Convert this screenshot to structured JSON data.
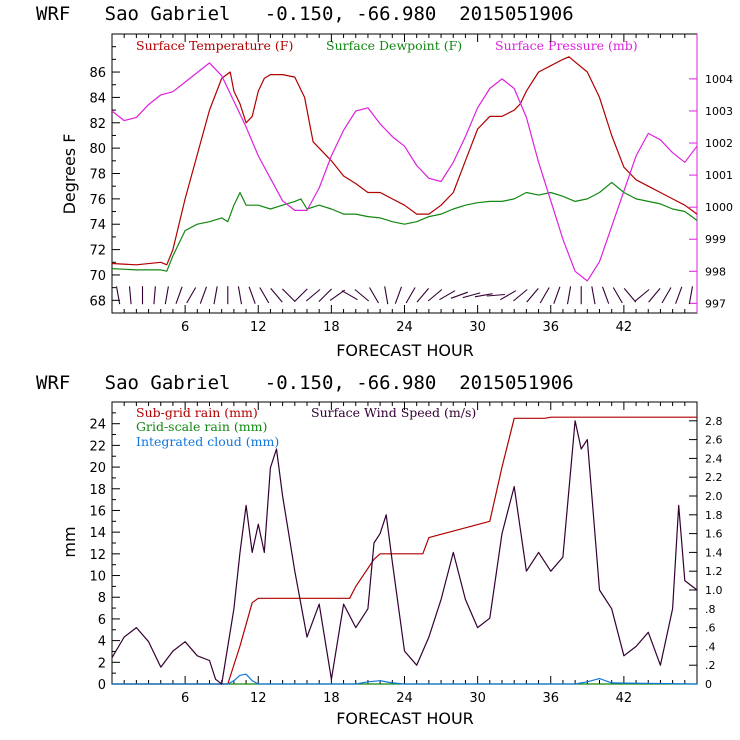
{
  "chart_data": [
    {
      "type": "line",
      "title": "WRF   Sao Gabriel   -0.150, -66.980  2015051906",
      "xlabel": "FORECAST HOUR",
      "ylabel": "Degrees F",
      "xlim": [
        0,
        48
      ],
      "ylim": [
        67,
        89
      ],
      "y2lim": [
        996.7,
        1005.4
      ],
      "xticks": [
        "6",
        "12",
        "18",
        "24",
        "30",
        "36",
        "42"
      ],
      "xtick_values": [
        6,
        12,
        18,
        24,
        30,
        36,
        42
      ],
      "yticks": [
        "68",
        "70",
        "72",
        "74",
        "76",
        "78",
        "80",
        "82",
        "84",
        "86"
      ],
      "ytick_values": [
        68,
        70,
        72,
        74,
        76,
        78,
        80,
        82,
        84,
        86
      ],
      "y2ticks": [
        "997",
        "998",
        "999",
        "1000",
        "1001",
        "1002",
        "1003",
        "1004"
      ],
      "y2tick_values": [
        997,
        998,
        999,
        1000,
        1001,
        1002,
        1003,
        1004
      ],
      "legend": [
        "Surface Temperature (F)",
        "Surface Dewpoint (F)",
        "Surface Pressure (mb)"
      ],
      "colors": {
        "temperature": "#b00000",
        "dewpoint": "#118811",
        "pressure": "#dd22dd",
        "wind_barbs": "#330033"
      },
      "series": [
        {
          "name": "Surface Temperature (F)",
          "axis": "left",
          "x": [
            0,
            2,
            4,
            4.5,
            5,
            6,
            7,
            8,
            9,
            9.7,
            10,
            10.5,
            11,
            11.5,
            12,
            12.5,
            13,
            14,
            15,
            15.8,
            16.5,
            18,
            19,
            20,
            21,
            22,
            23,
            24,
            25,
            26,
            27,
            28,
            29,
            30,
            31,
            32,
            33,
            33.5,
            34,
            35,
            36,
            37,
            37.5,
            38,
            39,
            40,
            41,
            42,
            43,
            44,
            45,
            46,
            47,
            48
          ],
          "y": [
            70.9,
            70.8,
            71.0,
            70.8,
            72.0,
            76.0,
            79.5,
            83.0,
            85.5,
            86.0,
            84.5,
            83.5,
            82.0,
            82.5,
            84.5,
            85.5,
            85.8,
            85.8,
            85.6,
            84.0,
            80.5,
            79.0,
            77.8,
            77.2,
            76.5,
            76.5,
            76.0,
            75.5,
            74.8,
            74.8,
            75.5,
            76.5,
            79.0,
            81.5,
            82.5,
            82.5,
            83.0,
            83.5,
            84.5,
            86.0,
            86.5,
            87.0,
            87.2,
            86.8,
            86.0,
            84.0,
            81.0,
            78.5,
            77.5,
            77.0,
            76.5,
            76.0,
            75.5,
            74.8
          ]
        },
        {
          "name": "Surface Dewpoint (F)",
          "axis": "left",
          "x": [
            0,
            2,
            4,
            4.5,
            5,
            6,
            7,
            8,
            9,
            9.5,
            10,
            10.5,
            11,
            12,
            13,
            14,
            15,
            15.5,
            16,
            17,
            18,
            19,
            20,
            21,
            22,
            23,
            24,
            25,
            26,
            27,
            28,
            29,
            30,
            31,
            32,
            33,
            34,
            35,
            36,
            37,
            38,
            39,
            40,
            41,
            42,
            43,
            44,
            45,
            46,
            47,
            48
          ],
          "y": [
            70.5,
            70.4,
            70.4,
            70.3,
            71.5,
            73.5,
            74.0,
            74.2,
            74.5,
            74.2,
            75.5,
            76.5,
            75.5,
            75.5,
            75.2,
            75.5,
            75.8,
            76.0,
            75.2,
            75.5,
            75.2,
            74.8,
            74.8,
            74.6,
            74.5,
            74.2,
            74.0,
            74.2,
            74.6,
            74.8,
            75.2,
            75.5,
            75.7,
            75.8,
            75.8,
            76.0,
            76.5,
            76.3,
            76.5,
            76.2,
            75.8,
            76.0,
            76.5,
            77.3,
            76.5,
            76.0,
            75.8,
            75.6,
            75.2,
            75.0,
            74.3
          ]
        },
        {
          "name": "Surface Pressure (mb)",
          "axis": "right",
          "x": [
            0,
            1,
            2,
            3,
            4,
            5,
            6,
            7,
            8,
            9,
            10,
            11,
            12,
            13,
            14,
            15,
            16,
            17,
            18,
            19,
            20,
            21,
            22,
            23,
            24,
            25,
            26,
            27,
            28,
            29,
            30,
            31,
            32,
            33,
            34,
            35,
            36,
            37,
            38,
            39,
            40,
            41,
            42,
            43,
            44,
            45,
            46,
            47,
            48
          ],
          "y": [
            1003.0,
            1002.7,
            1002.8,
            1003.2,
            1003.5,
            1003.6,
            1003.9,
            1004.2,
            1004.5,
            1004.1,
            1003.3,
            1002.5,
            1001.6,
            1000.9,
            1000.2,
            999.9,
            999.9,
            1000.6,
            1001.6,
            1002.4,
            1003.0,
            1003.1,
            1002.6,
            1002.2,
            1001.9,
            1001.3,
            1000.9,
            1000.8,
            1001.4,
            1002.2,
            1003.1,
            1003.7,
            1004.0,
            1003.7,
            1002.8,
            1001.4,
            1000.2,
            999.0,
            998.0,
            997.7,
            998.3,
            999.4,
            1000.5,
            1001.6,
            1002.3,
            1002.1,
            1001.7,
            1001.4,
            1001.9
          ]
        }
      ],
      "wind_barbs_y": 68.4,
      "wind_barb_directions_deg": [
        80,
        85,
        90,
        95,
        100,
        110,
        120,
        110,
        100,
        90,
        80,
        70,
        60,
        50,
        45,
        135,
        140,
        135,
        145,
        30,
        40,
        60,
        80,
        110,
        120,
        130,
        140,
        150,
        160,
        165,
        170,
        175,
        150,
        140,
        130,
        120,
        110,
        100,
        90,
        80,
        70,
        60,
        50,
        140,
        130,
        120,
        110,
        100
      ]
    },
    {
      "type": "line",
      "title": "WRF   Sao Gabriel   -0.150, -66.980  2015051906",
      "xlabel": "FORECAST HOUR",
      "ylabel": "mm",
      "xlim": [
        0,
        48
      ],
      "ylim": [
        0,
        26
      ],
      "y2lim": [
        0,
        3.0
      ],
      "xticks": [
        "6",
        "12",
        "18",
        "24",
        "30",
        "36",
        "42"
      ],
      "xtick_values": [
        6,
        12,
        18,
        24,
        30,
        36,
        42
      ],
      "yticks": [
        "0",
        "2",
        "4",
        "6",
        "8",
        "10",
        "12",
        "14",
        "16",
        "18",
        "20",
        "22",
        "24"
      ],
      "ytick_values": [
        0,
        2,
        4,
        6,
        8,
        10,
        12,
        14,
        16,
        18,
        20,
        22,
        24
      ],
      "y2ticks": [
        "0",
        ".2",
        ".4",
        ".6",
        ".8",
        "1.0",
        "1.2",
        "1.4",
        "1.6",
        "1.8",
        "2.0",
        "2.2",
        "2.4",
        "2.6",
        "2.8"
      ],
      "y2tick_values": [
        0,
        0.2,
        0.4,
        0.6,
        0.8,
        1.0,
        1.2,
        1.4,
        1.6,
        1.8,
        2.0,
        2.2,
        2.4,
        2.6,
        2.8
      ],
      "legend": [
        "Sub-grid rain (mm)",
        "Grid-scale rain (mm)",
        "Integrated cloud (mm)",
        "Surface Wind Speed (m/s)"
      ],
      "colors": {
        "subgrid": "#b00000",
        "gridscale": "#118811",
        "cloud": "#1177dd",
        "wind": "#330033"
      },
      "series": [
        {
          "name": "Sub-grid rain (mm)",
          "axis": "left",
          "x": [
            0,
            9.5,
            10.5,
            11.5,
            12,
            16,
            19.5,
            20,
            21.5,
            22,
            25.5,
            26,
            31,
            32,
            33,
            35.5,
            36,
            48
          ],
          "y": [
            0,
            0,
            3.5,
            7.5,
            7.9,
            7.9,
            7.9,
            9.0,
            11.5,
            12.0,
            12.0,
            13.5,
            15.0,
            20.0,
            24.5,
            24.5,
            24.6,
            24.6
          ]
        },
        {
          "name": "Grid-scale rain (mm)",
          "axis": "left",
          "x": [
            0,
            48
          ],
          "y": [
            0,
            0
          ]
        },
        {
          "name": "Integrated cloud (mm)",
          "axis": "left",
          "x": [
            0,
            9.5,
            10,
            10.5,
            11,
            11.5,
            12,
            20,
            21,
            22,
            23,
            24,
            38,
            39,
            40,
            41,
            48
          ],
          "y": [
            0,
            0,
            0.3,
            0.8,
            0.9,
            0.3,
            0,
            0,
            0.2,
            0.3,
            0.1,
            0,
            0,
            0.2,
            0.5,
            0.1,
            0
          ]
        },
        {
          "name": "Surface Wind Speed (m/s)",
          "axis": "right",
          "x": [
            0,
            1,
            2,
            3,
            4,
            5,
            6,
            7,
            8,
            8.5,
            9,
            10,
            10.5,
            11,
            11.5,
            12,
            12.5,
            13,
            13.5,
            14,
            15,
            16,
            17,
            18,
            19,
            20,
            21,
            21.5,
            22,
            22.5,
            23,
            24,
            25,
            26,
            27,
            28,
            29,
            30,
            31,
            32,
            33,
            34,
            35,
            36,
            37,
            38,
            38.5,
            39,
            40,
            41,
            42,
            43,
            44,
            45,
            46,
            46.5,
            47,
            48
          ],
          "y": [
            0.28,
            0.5,
            0.6,
            0.45,
            0.18,
            0.35,
            0.45,
            0.3,
            0.25,
            0.05,
            0.0,
            0.8,
            1.4,
            1.9,
            1.4,
            1.7,
            1.4,
            2.3,
            2.5,
            2.0,
            1.2,
            0.5,
            0.85,
            0.05,
            0.85,
            0.6,
            0.8,
            1.5,
            1.6,
            1.8,
            1.3,
            0.35,
            0.2,
            0.5,
            0.9,
            1.4,
            0.9,
            0.6,
            0.7,
            1.6,
            2.1,
            1.2,
            1.4,
            1.2,
            1.35,
            2.8,
            2.5,
            2.6,
            1.0,
            0.8,
            0.3,
            0.4,
            0.55,
            0.2,
            0.8,
            1.9,
            1.1,
            1.0
          ]
        }
      ]
    }
  ]
}
